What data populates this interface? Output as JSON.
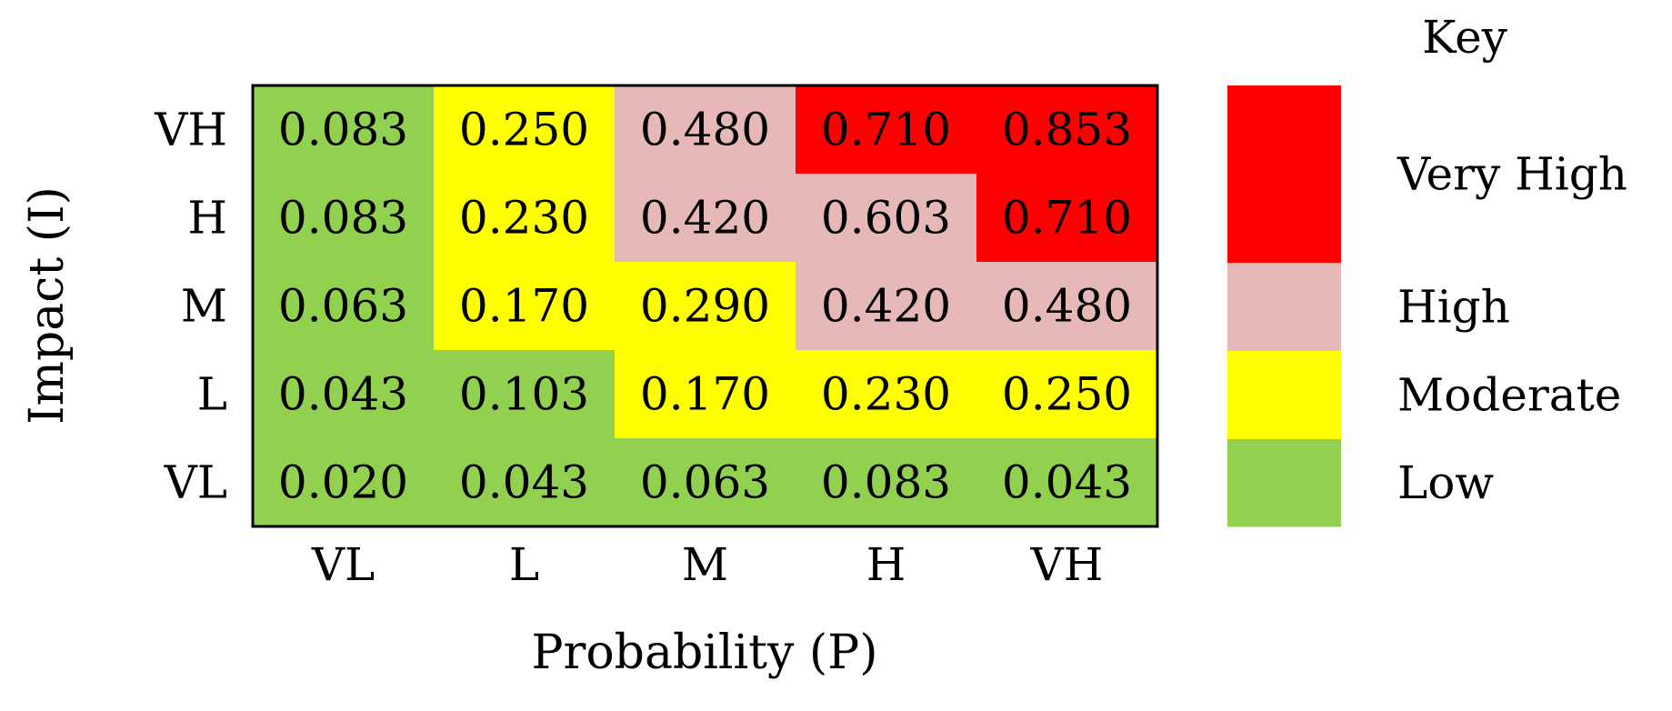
{
  "chart_data": {
    "type": "heatmap",
    "title": "",
    "xlabel": "Probability (P)",
    "ylabel": "Impact (I)",
    "x_categories": [
      "VL",
      "L",
      "M",
      "H",
      "VH"
    ],
    "y_categories": [
      "VH",
      "H",
      "M",
      "L",
      "VL"
    ],
    "values": [
      [
        "0.083",
        "0.250",
        "0.480",
        "0.710",
        "0.853"
      ],
      [
        "0.083",
        "0.230",
        "0.420",
        "0.603",
        "0.710"
      ],
      [
        "0.063",
        "0.170",
        "0.290",
        "0.420",
        "0.480"
      ],
      [
        "0.043",
        "0.103",
        "0.170",
        "0.230",
        "0.250"
      ],
      [
        "0.020",
        "0.043",
        "0.063",
        "0.083",
        "0.043"
      ]
    ],
    "levels": [
      [
        "Low",
        "Moderate",
        "High",
        "Very High",
        "Very High"
      ],
      [
        "Low",
        "Moderate",
        "High",
        "High",
        "Very High"
      ],
      [
        "Low",
        "Moderate",
        "Moderate",
        "High",
        "High"
      ],
      [
        "Low",
        "Low",
        "Moderate",
        "Moderate",
        "Moderate"
      ],
      [
        "Low",
        "Low",
        "Low",
        "Low",
        "Low"
      ]
    ],
    "legend": {
      "title": "Key",
      "placement": "right",
      "entries": [
        {
          "label": "Very High",
          "color": "#ff0000"
        },
        {
          "label": "High",
          "color": "#e6b8b8"
        },
        {
          "label": "Moderate",
          "color": "#ffff00"
        },
        {
          "label": "Low",
          "color": "#92d050"
        }
      ]
    }
  }
}
